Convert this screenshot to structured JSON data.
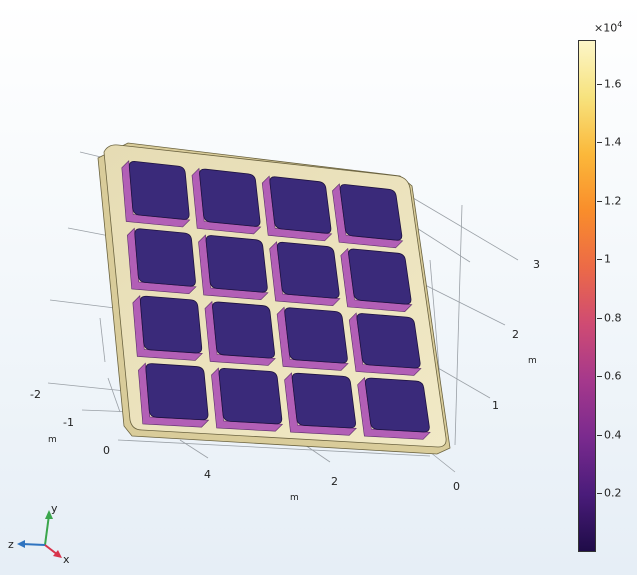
{
  "colors": {
    "background_top": "#ffffff",
    "background_bottom": "#e6eef6",
    "plate_fill": "#efe4b8",
    "plate_edge": "#c9b98a",
    "block_top": "#3a2a7a",
    "block_side": "#b25fb6",
    "grid_line": "#9aa0a6",
    "colorbar_stops": [
      "#1f0c48",
      "#4a1c7a",
      "#7a2a8e",
      "#a5388c",
      "#cf4b73",
      "#ec6a47",
      "#f98d2b",
      "#fbb83a",
      "#f7e27d",
      "#fcf6c8"
    ]
  },
  "colorbar": {
    "multiplier": "×10",
    "exponent": "4",
    "ticks": [
      "1.6",
      "1.4",
      "1.2",
      "1",
      "0.8",
      "0.6",
      "0.4",
      "0.2"
    ]
  },
  "axis_labels": {
    "right_axis": [
      "3",
      "2",
      "1"
    ],
    "right_unit": "m",
    "bottom_axis": [
      "4",
      "2",
      "0"
    ],
    "bottom_unit": "m",
    "left_axis": [
      "-2",
      "-1",
      "0"
    ],
    "left_unit": "m"
  },
  "triad": {
    "y": "y",
    "z": "z",
    "x": "x"
  },
  "icons": {
    "triad": "axis-triad-icon"
  }
}
